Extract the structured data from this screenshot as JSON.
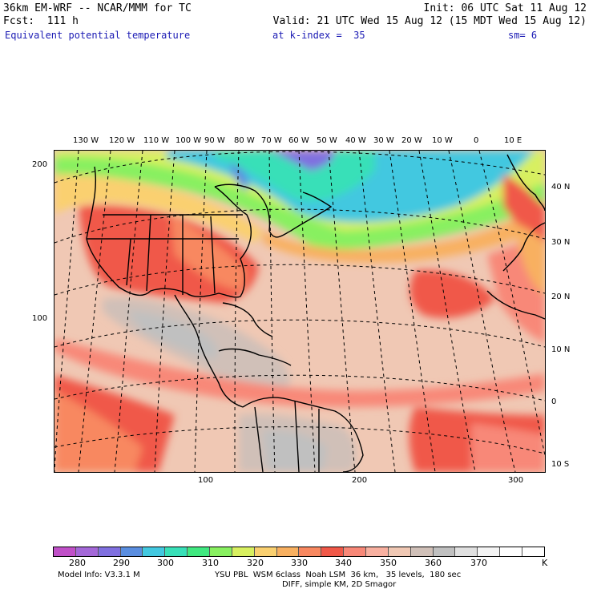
{
  "header": {
    "line1_left": "36km EM-WRF -- NCAR/MMM for TC",
    "line1_right": "Init: 06 UTC Sat 11 Aug 12",
    "line2_left": "Fcst:  111 h",
    "line2_right": "Valid: 21 UTC Wed 15 Aug 12 (15 MDT Wed 15 Aug 12)",
    "field": "Equivalent potential temperature",
    "level": "at k-index =  35",
    "smoothing": "sm= 6"
  },
  "map": {
    "lon_labels": [
      "130 W",
      "120 W",
      "110 W",
      "100 W",
      "90 W",
      "80 W",
      "70 W",
      "60 W",
      "50 W",
      "40 W",
      "30 W",
      "20 W",
      "10 W",
      "0",
      "10 E"
    ],
    "lat_labels": [
      "40 N",
      "30 N",
      "20 N",
      "10 N",
      "0",
      "10 S"
    ],
    "grid_x_labels": [
      "100",
      "200",
      "300"
    ],
    "grid_y_labels": [
      "200",
      "100"
    ]
  },
  "colorbar": {
    "labels": [
      "280",
      "290",
      "300",
      "310",
      "320",
      "330",
      "340",
      "350",
      "360",
      "370",
      "K"
    ],
    "colors": [
      "#c050c8",
      "#a468d8",
      "#8070e0",
      "#5a8ee0",
      "#42c8e0",
      "#38e0b8",
      "#40e880",
      "#88f060",
      "#d8f060",
      "#fad070",
      "#f8b060",
      "#f88860",
      "#f05848",
      "#f88878",
      "#f8b0a0",
      "#f0c8b4",
      "#d0c0b8",
      "#c0c0c0",
      "#e0e0e0",
      "#f4f4f4",
      "#ffffff",
      "#ffffff"
    ]
  },
  "model_info": {
    "line1_left": "Model Info: V3.3.1 M",
    "line1_right": "YSU PBL  WSM 6class  Noah LSM  36 km,   35 levels,  180 sec",
    "line2": "DIFF, simple KM, 2D Smagor"
  }
}
